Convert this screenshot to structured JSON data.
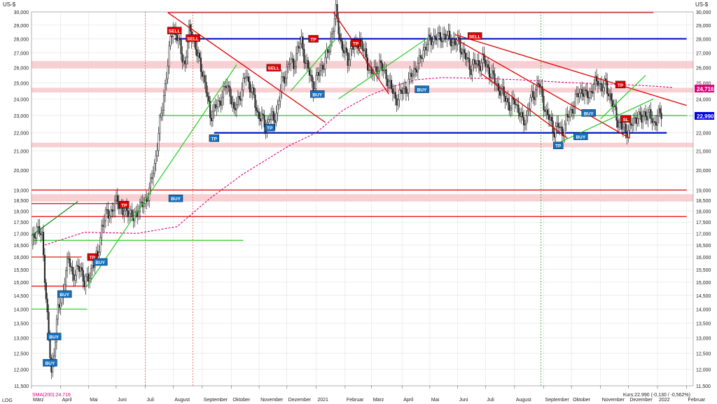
{
  "chart_data": {
    "type": "candlestick",
    "currency_left": "US-$",
    "currency_right": "US-$",
    "log_label": "LOG",
    "scale": "log",
    "ylim": [
      11500,
      30000
    ],
    "yticks": [
      11500,
      12000,
      12500,
      13000,
      13500,
      14000,
      14500,
      15000,
      15500,
      16000,
      16500,
      17000,
      17500,
      18000,
      18500,
      19000,
      20000,
      21000,
      22000,
      23000,
      24000,
      25000,
      26000,
      27000,
      28000,
      29000,
      30000
    ],
    "ytick_labels": [
      "11,500",
      "12,000",
      "12,500",
      "13,000",
      "13,500",
      "14,000",
      "14,500",
      "15,000",
      "15,500",
      "16,000",
      "16,500",
      "17,000",
      "17,500",
      "18,000",
      "18,500",
      "19,000",
      "20,000",
      "21,000",
      "22,000",
      "23,000",
      "24,000",
      "25,000",
      "26,000",
      "27,000",
      "28,000",
      "29,000",
      "30,000"
    ],
    "x_labels": [
      "März",
      "April",
      "Mai",
      "Juni",
      "Juli",
      "August",
      "September",
      "Oktober",
      "November",
      "Dezember",
      "2021",
      "Februar",
      "März",
      "April",
      "Mai",
      "Juni",
      "Juli",
      "August",
      "September",
      "Oktober",
      "November",
      "Dezember",
      "2022",
      "Februar"
    ],
    "x_label_index": [
      0,
      22,
      43,
      64,
      86,
      107,
      129,
      151,
      172,
      193,
      215,
      237,
      257,
      280,
      301,
      322,
      343,
      365,
      387,
      408,
      430,
      451,
      473,
      495
    ],
    "sma_label": "SMA(200):24.716",
    "price_label": "Kurs:22.990 (-0,130 / -0,562%)",
    "last_price": 22990,
    "last_price_label": "22,990",
    "sma_value": 24716,
    "sma_value_label": "24,716",
    "sma_series": [
      [
        10,
        16500
      ],
      [
        40,
        17050
      ],
      [
        80,
        17000
      ],
      [
        110,
        17300
      ],
      [
        135,
        18600
      ],
      [
        160,
        19800
      ],
      [
        195,
        21300
      ],
      [
        215,
        22000
      ],
      [
        235,
        23300
      ],
      [
        255,
        24200
      ],
      [
        270,
        24700
      ],
      [
        290,
        25200
      ],
      [
        310,
        25350
      ],
      [
        340,
        25300
      ],
      [
        370,
        25200
      ],
      [
        400,
        25050
      ],
      [
        430,
        24950
      ],
      [
        460,
        24850
      ],
      [
        485,
        24716
      ]
    ],
    "price_path": [
      [
        0,
        16500
      ],
      [
        4,
        17300
      ],
      [
        8,
        16800
      ],
      [
        11,
        14500
      ],
      [
        13,
        13000
      ],
      [
        15,
        11800
      ],
      [
        17,
        12600
      ],
      [
        20,
        14000
      ],
      [
        23,
        14300
      ],
      [
        25,
        15200
      ],
      [
        28,
        15900
      ],
      [
        31,
        15300
      ],
      [
        34,
        15400
      ],
      [
        37,
        15600
      ],
      [
        40,
        15000
      ],
      [
        43,
        15100
      ],
      [
        46,
        15700
      ],
      [
        50,
        16000
      ],
      [
        53,
        17300
      ],
      [
        57,
        17900
      ],
      [
        61,
        18000
      ],
      [
        65,
        18600
      ],
      [
        69,
        17900
      ],
      [
        73,
        18100
      ],
      [
        77,
        17600
      ],
      [
        81,
        18200
      ],
      [
        85,
        18300
      ],
      [
        89,
        19000
      ],
      [
        93,
        20200
      ],
      [
        96,
        22000
      ],
      [
        99,
        23500
      ],
      [
        102,
        25600
      ],
      [
        105,
        27800
      ],
      [
        107,
        28900
      ],
      [
        110,
        28200
      ],
      [
        113,
        27000
      ],
      [
        116,
        26200
      ],
      [
        119,
        28500
      ],
      [
        122,
        28200
      ],
      [
        125,
        26900
      ],
      [
        129,
        25800
      ],
      [
        132,
        24500
      ],
      [
        135,
        23000
      ],
      [
        138,
        23400
      ],
      [
        141,
        23600
      ],
      [
        144,
        24300
      ],
      [
        147,
        24800
      ],
      [
        150,
        24500
      ],
      [
        153,
        23100
      ],
      [
        156,
        24000
      ],
      [
        159,
        24500
      ],
      [
        162,
        25600
      ],
      [
        165,
        24800
      ],
      [
        168,
        24000
      ],
      [
        171,
        23100
      ],
      [
        174,
        22800
      ],
      [
        177,
        22300
      ],
      [
        180,
        23000
      ],
      [
        183,
        22700
      ],
      [
        186,
        23500
      ],
      [
        189,
        25000
      ],
      [
        192,
        25600
      ],
      [
        195,
        26400
      ],
      [
        198,
        26200
      ],
      [
        201,
        27200
      ],
      [
        204,
        27800
      ],
      [
        207,
        26400
      ],
      [
        210,
        25600
      ],
      [
        213,
        24700
      ],
      [
        216,
        25400
      ],
      [
        219,
        26000
      ],
      [
        222,
        26500
      ],
      [
        225,
        27300
      ],
      [
        228,
        29000
      ],
      [
        230,
        30000
      ],
      [
        233,
        28000
      ],
      [
        236,
        27200
      ],
      [
        239,
        26400
      ],
      [
        242,
        27600
      ],
      [
        245,
        27300
      ],
      [
        248,
        28000
      ],
      [
        251,
        27100
      ],
      [
        254,
        26300
      ],
      [
        257,
        25600
      ],
      [
        260,
        25800
      ],
      [
        263,
        26300
      ],
      [
        266,
        25700
      ],
      [
        269,
        25300
      ],
      [
        272,
        24600
      ],
      [
        275,
        24000
      ],
      [
        278,
        24200
      ],
      [
        281,
        24600
      ],
      [
        284,
        24700
      ],
      [
        287,
        25500
      ],
      [
        290,
        26000
      ],
      [
        293,
        26300
      ],
      [
        296,
        27200
      ],
      [
        299,
        27700
      ],
      [
        302,
        27900
      ],
      [
        305,
        28200
      ],
      [
        308,
        28000
      ],
      [
        311,
        28300
      ],
      [
        314,
        28100
      ],
      [
        317,
        28000
      ],
      [
        320,
        27600
      ],
      [
        323,
        27800
      ],
      [
        326,
        27000
      ],
      [
        329,
        26500
      ],
      [
        332,
        26000
      ],
      [
        335,
        26300
      ],
      [
        338,
        26200
      ],
      [
        341,
        26500
      ],
      [
        344,
        26100
      ],
      [
        347,
        25600
      ],
      [
        350,
        25100
      ],
      [
        353,
        24700
      ],
      [
        356,
        24300
      ],
      [
        359,
        24000
      ],
      [
        362,
        23400
      ],
      [
        365,
        24000
      ],
      [
        368,
        23300
      ],
      [
        371,
        22600
      ],
      [
        374,
        22900
      ],
      [
        377,
        23900
      ],
      [
        380,
        24400
      ],
      [
        383,
        25000
      ],
      [
        386,
        24100
      ],
      [
        389,
        23100
      ],
      [
        392,
        22700
      ],
      [
        395,
        22100
      ],
      [
        398,
        22400
      ],
      [
        401,
        22000
      ],
      [
        404,
        22700
      ],
      [
        407,
        23200
      ],
      [
        410,
        23700
      ],
      [
        413,
        24300
      ],
      [
        416,
        24600
      ],
      [
        419,
        24100
      ],
      [
        422,
        24400
      ],
      [
        425,
        24800
      ],
      [
        428,
        25200
      ],
      [
        431,
        24700
      ],
      [
        434,
        24900
      ],
      [
        437,
        24200
      ],
      [
        440,
        23400
      ],
      [
        443,
        22700
      ],
      [
        446,
        22300
      ],
      [
        449,
        22100
      ],
      [
        452,
        22300
      ],
      [
        455,
        22600
      ],
      [
        458,
        23100
      ],
      [
        461,
        22700
      ],
      [
        464,
        23200
      ],
      [
        467,
        23000
      ],
      [
        470,
        22500
      ],
      [
        473,
        23000
      ],
      [
        476,
        22990
      ]
    ],
    "resistance_lines": [
      {
        "value": 29950,
        "x": [
          103,
          470
        ]
      },
      {
        "value": 19000,
        "x": [
          0,
          495
        ]
      },
      {
        "value": 18350,
        "x": [
          0,
          70
        ]
      },
      {
        "value": 17750,
        "x": [
          0,
          495
        ]
      },
      {
        "value": 16000,
        "x": [
          0,
          38
        ]
      },
      {
        "value": 14850,
        "x": [
          0,
          42
        ]
      }
    ],
    "support_lines_blue": [
      {
        "value": 28000,
        "x": [
          108,
          495
        ]
      },
      {
        "value": 22000,
        "x": [
          138,
          480
        ]
      }
    ],
    "green_horizontals": [
      {
        "value": 23000,
        "x": [
          96,
          495
        ]
      },
      {
        "value": 16700,
        "x": [
          0,
          160
        ]
      },
      {
        "value": 14000,
        "x": [
          0,
          42
        ]
      }
    ],
    "zones": [
      {
        "from": 25950,
        "to": 26450
      },
      {
        "from": 24400,
        "to": 24700
      },
      {
        "from": 21200,
        "to": 21450
      },
      {
        "from": 18450,
        "to": 18800
      }
    ],
    "red_trendlines": [
      [
        [
          103,
          29950
        ],
        [
          222,
          22600
        ]
      ],
      [
        [
          228,
          30000
        ],
        [
          270,
          24300
        ]
      ],
      [
        [
          320,
          28000
        ],
        [
          452,
          21700
        ]
      ],
      [
        [
          320,
          28300
        ],
        [
          495,
          23600
        ]
      ],
      [
        [
          340,
          25600
        ],
        [
          405,
          21700
        ]
      ]
    ],
    "green_trendlines": [
      [
        [
          0,
          16900
        ],
        [
          35,
          18450
        ]
      ],
      [
        [
          42,
          14850
        ],
        [
          155,
          26200
        ]
      ],
      [
        [
          196,
          24500
        ],
        [
          230,
          28000
        ]
      ],
      [
        [
          232,
          24000
        ],
        [
          300,
          28100
        ]
      ],
      [
        [
          400,
          21500
        ],
        [
          470,
          24000
        ]
      ],
      [
        [
          430,
          22800
        ],
        [
          464,
          25500
        ]
      ]
    ],
    "signals": [
      {
        "label": "SELL",
        "x": 108,
        "y": 28600,
        "kind": "sell"
      },
      {
        "label": "SELL",
        "x": 122,
        "y": 28050,
        "kind": "sell"
      },
      {
        "label": "SELL",
        "x": 183,
        "y": 26000,
        "kind": "sell"
      },
      {
        "label": "SELL",
        "x": 335,
        "y": 28200,
        "kind": "sell"
      },
      {
        "label": "TP",
        "x": 213,
        "y": 28000,
        "kind": "tp"
      },
      {
        "label": "TP",
        "x": 245,
        "y": 27700,
        "kind": "tp"
      },
      {
        "label": "TP",
        "x": 70,
        "y": 18300,
        "kind": "tp"
      },
      {
        "label": "TP",
        "x": 46,
        "y": 16000,
        "kind": "tp"
      },
      {
        "label": "TP",
        "x": 445,
        "y": 24900,
        "kind": "tp"
      },
      {
        "label": "SL",
        "x": 449,
        "y": 22800,
        "kind": "sl"
      },
      {
        "label": "TP",
        "x": 138,
        "y": 21700,
        "kind": "tp_blue"
      },
      {
        "label": "TP",
        "x": 180,
        "y": 22300,
        "kind": "tp_blue"
      },
      {
        "label": "TP",
        "x": 398,
        "y": 21300,
        "kind": "tp_blue"
      },
      {
        "label": "BUY",
        "x": 109,
        "y": 18600,
        "kind": "buy"
      },
      {
        "label": "BUY",
        "x": 216,
        "y": 24300,
        "kind": "buy"
      },
      {
        "label": "BUY",
        "x": 295,
        "y": 24600,
        "kind": "buy"
      },
      {
        "label": "BUY",
        "x": 52,
        "y": 15800,
        "kind": "buy"
      },
      {
        "label": "BUY",
        "x": 25,
        "y": 14550,
        "kind": "buy"
      },
      {
        "label": "BUY",
        "x": 17,
        "y": 13050,
        "kind": "buy"
      },
      {
        "label": "BUY",
        "x": 14,
        "y": 12200,
        "kind": "buy"
      },
      {
        "label": "BUY",
        "x": 421,
        "y": 23150,
        "kind": "buy"
      },
      {
        "label": "BUY",
        "x": 415,
        "y": 21800,
        "kind": "buy"
      }
    ],
    "grid": true,
    "colors": {
      "candle": "#222222",
      "sma": "#e0007a",
      "resistance": "#e00000",
      "support": "#0018c8",
      "trend_green": "#22cc22",
      "zone": "#f7c8cc",
      "buy": "#1470c0",
      "sell": "#e00000",
      "last_price_box": "#0000e0",
      "sma_box": "#e0007a",
      "gridline": "#dcdcdc",
      "vline_red": "#e06040",
      "vline_green": "#22aa22"
    },
    "vlines": [
      {
        "x": 86,
        "kind": "red"
      },
      {
        "x": 122,
        "kind": "red"
      },
      {
        "x": 385,
        "kind": "green"
      }
    ]
  }
}
